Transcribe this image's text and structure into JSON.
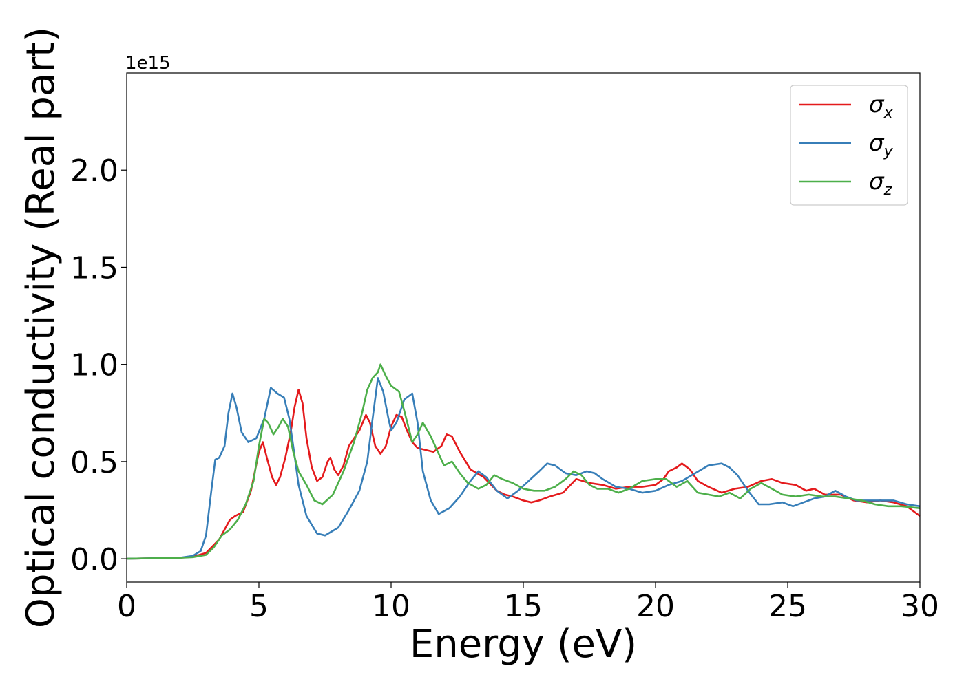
{
  "chart_data": {
    "type": "line",
    "title": "",
    "xlabel": "Energy (eV)",
    "ylabel": "Optical conductivity (Real part)",
    "y_offset_text": "1e15",
    "xlim": [
      0,
      30
    ],
    "ylim": [
      -0.12,
      2.5
    ],
    "x_ticks": [
      0,
      5,
      10,
      15,
      20,
      25,
      30
    ],
    "x_tick_labels": [
      "0",
      "5",
      "10",
      "15",
      "20",
      "25",
      "30"
    ],
    "y_ticks": [
      0.0,
      0.5,
      1.0,
      1.5,
      2.0
    ],
    "y_tick_labels": [
      "0.0",
      "0.5",
      "1.0",
      "1.5",
      "2.0"
    ],
    "grid": false,
    "legend_position": "top-right",
    "series": [
      {
        "name": "σ",
        "subscript": "x",
        "color": "#e41a1c",
        "points": [
          [
            0,
            0
          ],
          [
            2,
            0.005
          ],
          [
            2.5,
            0.01
          ],
          [
            3,
            0.03
          ],
          [
            3.5,
            0.1
          ],
          [
            3.9,
            0.2
          ],
          [
            4.1,
            0.22
          ],
          [
            4.4,
            0.24
          ],
          [
            4.7,
            0.35
          ],
          [
            5.0,
            0.55
          ],
          [
            5.15,
            0.6
          ],
          [
            5.3,
            0.52
          ],
          [
            5.5,
            0.42
          ],
          [
            5.65,
            0.38
          ],
          [
            5.8,
            0.42
          ],
          [
            6.0,
            0.52
          ],
          [
            6.2,
            0.65
          ],
          [
            6.35,
            0.78
          ],
          [
            6.5,
            0.87
          ],
          [
            6.65,
            0.8
          ],
          [
            6.8,
            0.62
          ],
          [
            7.0,
            0.47
          ],
          [
            7.2,
            0.4
          ],
          [
            7.4,
            0.42
          ],
          [
            7.6,
            0.5
          ],
          [
            7.7,
            0.52
          ],
          [
            7.85,
            0.46
          ],
          [
            8.0,
            0.43
          ],
          [
            8.2,
            0.48
          ],
          [
            8.4,
            0.58
          ],
          [
            8.6,
            0.62
          ],
          [
            8.8,
            0.66
          ],
          [
            9.05,
            0.74
          ],
          [
            9.2,
            0.7
          ],
          [
            9.4,
            0.58
          ],
          [
            9.6,
            0.54
          ],
          [
            9.8,
            0.58
          ],
          [
            10.0,
            0.68
          ],
          [
            10.2,
            0.74
          ],
          [
            10.4,
            0.73
          ],
          [
            10.6,
            0.66
          ],
          [
            10.8,
            0.6
          ],
          [
            11.0,
            0.57
          ],
          [
            11.3,
            0.56
          ],
          [
            11.6,
            0.55
          ],
          [
            11.9,
            0.58
          ],
          [
            12.1,
            0.64
          ],
          [
            12.3,
            0.63
          ],
          [
            12.6,
            0.55
          ],
          [
            13.0,
            0.46
          ],
          [
            13.5,
            0.42
          ],
          [
            14.0,
            0.35
          ],
          [
            14.3,
            0.33
          ],
          [
            14.6,
            0.32
          ],
          [
            15.0,
            0.3
          ],
          [
            15.3,
            0.29
          ],
          [
            15.6,
            0.3
          ],
          [
            16.0,
            0.32
          ],
          [
            16.5,
            0.34
          ],
          [
            17.0,
            0.41
          ],
          [
            17.5,
            0.39
          ],
          [
            18.0,
            0.38
          ],
          [
            18.5,
            0.36
          ],
          [
            19.0,
            0.37
          ],
          [
            19.5,
            0.37
          ],
          [
            20.0,
            0.38
          ],
          [
            20.3,
            0.41
          ],
          [
            20.5,
            0.45
          ],
          [
            20.8,
            0.47
          ],
          [
            21.0,
            0.49
          ],
          [
            21.3,
            0.46
          ],
          [
            21.6,
            0.4
          ],
          [
            22.0,
            0.37
          ],
          [
            22.5,
            0.34
          ],
          [
            23.0,
            0.36
          ],
          [
            23.5,
            0.37
          ],
          [
            24.0,
            0.4
          ],
          [
            24.4,
            0.41
          ],
          [
            24.8,
            0.39
          ],
          [
            25.3,
            0.38
          ],
          [
            25.7,
            0.35
          ],
          [
            26.0,
            0.36
          ],
          [
            26.4,
            0.33
          ],
          [
            27.0,
            0.33
          ],
          [
            27.5,
            0.3
          ],
          [
            28.0,
            0.29
          ],
          [
            28.5,
            0.3
          ],
          [
            29.0,
            0.29
          ],
          [
            29.5,
            0.27
          ],
          [
            30,
            0.22
          ]
        ]
      },
      {
        "name": "σ",
        "subscript": "y",
        "color": "#377eb8",
        "points": [
          [
            0,
            0
          ],
          [
            2,
            0.005
          ],
          [
            2.5,
            0.015
          ],
          [
            2.8,
            0.04
          ],
          [
            3.0,
            0.12
          ],
          [
            3.2,
            0.35
          ],
          [
            3.35,
            0.51
          ],
          [
            3.5,
            0.52
          ],
          [
            3.7,
            0.58
          ],
          [
            3.85,
            0.75
          ],
          [
            4.0,
            0.85
          ],
          [
            4.15,
            0.78
          ],
          [
            4.35,
            0.65
          ],
          [
            4.6,
            0.6
          ],
          [
            4.9,
            0.62
          ],
          [
            5.2,
            0.72
          ],
          [
            5.45,
            0.88
          ],
          [
            5.7,
            0.85
          ],
          [
            5.95,
            0.83
          ],
          [
            6.15,
            0.72
          ],
          [
            6.3,
            0.58
          ],
          [
            6.5,
            0.38
          ],
          [
            6.8,
            0.22
          ],
          [
            7.2,
            0.13
          ],
          [
            7.5,
            0.12
          ],
          [
            8.0,
            0.16
          ],
          [
            8.4,
            0.25
          ],
          [
            8.8,
            0.35
          ],
          [
            9.1,
            0.5
          ],
          [
            9.3,
            0.72
          ],
          [
            9.5,
            0.93
          ],
          [
            9.7,
            0.86
          ],
          [
            9.9,
            0.72
          ],
          [
            10.0,
            0.66
          ],
          [
            10.2,
            0.7
          ],
          [
            10.5,
            0.82
          ],
          [
            10.8,
            0.85
          ],
          [
            11.0,
            0.7
          ],
          [
            11.2,
            0.45
          ],
          [
            11.5,
            0.3
          ],
          [
            11.8,
            0.23
          ],
          [
            12.2,
            0.26
          ],
          [
            12.6,
            0.32
          ],
          [
            13.0,
            0.4
          ],
          [
            13.3,
            0.45
          ],
          [
            13.6,
            0.42
          ],
          [
            14.0,
            0.35
          ],
          [
            14.4,
            0.31
          ],
          [
            14.8,
            0.35
          ],
          [
            15.2,
            0.4
          ],
          [
            15.6,
            0.45
          ],
          [
            15.9,
            0.49
          ],
          [
            16.2,
            0.48
          ],
          [
            16.6,
            0.44
          ],
          [
            17.0,
            0.43
          ],
          [
            17.4,
            0.45
          ],
          [
            17.7,
            0.44
          ],
          [
            18.0,
            0.41
          ],
          [
            18.5,
            0.37
          ],
          [
            19.0,
            0.36
          ],
          [
            19.5,
            0.34
          ],
          [
            20.0,
            0.35
          ],
          [
            20.5,
            0.38
          ],
          [
            21.0,
            0.4
          ],
          [
            21.5,
            0.44
          ],
          [
            22.0,
            0.48
          ],
          [
            22.5,
            0.49
          ],
          [
            22.8,
            0.47
          ],
          [
            23.1,
            0.43
          ],
          [
            23.5,
            0.35
          ],
          [
            23.9,
            0.28
          ],
          [
            24.3,
            0.28
          ],
          [
            24.8,
            0.29
          ],
          [
            25.2,
            0.27
          ],
          [
            25.6,
            0.29
          ],
          [
            26.0,
            0.31
          ],
          [
            26.4,
            0.32
          ],
          [
            26.8,
            0.35
          ],
          [
            27.2,
            0.32
          ],
          [
            27.6,
            0.3
          ],
          [
            28.0,
            0.3
          ],
          [
            28.5,
            0.3
          ],
          [
            29.0,
            0.3
          ],
          [
            29.5,
            0.28
          ],
          [
            30,
            0.27
          ]
        ]
      },
      {
        "name": "σ",
        "subscript": "z",
        "color": "#4daf4a",
        "points": [
          [
            0,
            0
          ],
          [
            2,
            0.005
          ],
          [
            2.5,
            0.008
          ],
          [
            3.0,
            0.02
          ],
          [
            3.3,
            0.06
          ],
          [
            3.6,
            0.12
          ],
          [
            3.9,
            0.15
          ],
          [
            4.2,
            0.2
          ],
          [
            4.5,
            0.28
          ],
          [
            4.8,
            0.4
          ],
          [
            5.0,
            0.58
          ],
          [
            5.2,
            0.72
          ],
          [
            5.35,
            0.7
          ],
          [
            5.55,
            0.64
          ],
          [
            5.75,
            0.68
          ],
          [
            5.9,
            0.72
          ],
          [
            6.1,
            0.68
          ],
          [
            6.3,
            0.55
          ],
          [
            6.5,
            0.45
          ],
          [
            6.8,
            0.38
          ],
          [
            7.1,
            0.3
          ],
          [
            7.4,
            0.28
          ],
          [
            7.8,
            0.33
          ],
          [
            8.2,
            0.45
          ],
          [
            8.6,
            0.6
          ],
          [
            8.9,
            0.75
          ],
          [
            9.1,
            0.87
          ],
          [
            9.3,
            0.93
          ],
          [
            9.5,
            0.96
          ],
          [
            9.6,
            1.0
          ],
          [
            9.8,
            0.94
          ],
          [
            10.0,
            0.89
          ],
          [
            10.3,
            0.86
          ],
          [
            10.5,
            0.76
          ],
          [
            10.8,
            0.6
          ],
          [
            11.0,
            0.64
          ],
          [
            11.2,
            0.7
          ],
          [
            11.5,
            0.63
          ],
          [
            11.8,
            0.54
          ],
          [
            12.0,
            0.48
          ],
          [
            12.3,
            0.5
          ],
          [
            12.6,
            0.44
          ],
          [
            12.9,
            0.39
          ],
          [
            13.3,
            0.36
          ],
          [
            13.6,
            0.38
          ],
          [
            13.9,
            0.43
          ],
          [
            14.2,
            0.41
          ],
          [
            14.6,
            0.39
          ],
          [
            15.0,
            0.36
          ],
          [
            15.4,
            0.35
          ],
          [
            15.8,
            0.35
          ],
          [
            16.2,
            0.37
          ],
          [
            16.6,
            0.41
          ],
          [
            16.9,
            0.45
          ],
          [
            17.2,
            0.43
          ],
          [
            17.5,
            0.38
          ],
          [
            17.8,
            0.36
          ],
          [
            18.2,
            0.36
          ],
          [
            18.6,
            0.34
          ],
          [
            19.0,
            0.36
          ],
          [
            19.5,
            0.4
          ],
          [
            20.0,
            0.41
          ],
          [
            20.4,
            0.41
          ],
          [
            20.8,
            0.37
          ],
          [
            21.2,
            0.4
          ],
          [
            21.6,
            0.34
          ],
          [
            22.0,
            0.33
          ],
          [
            22.4,
            0.32
          ],
          [
            22.8,
            0.34
          ],
          [
            23.2,
            0.31
          ],
          [
            23.6,
            0.36
          ],
          [
            24.0,
            0.39
          ],
          [
            24.4,
            0.36
          ],
          [
            24.8,
            0.33
          ],
          [
            25.3,
            0.32
          ],
          [
            25.8,
            0.33
          ],
          [
            26.3,
            0.32
          ],
          [
            26.8,
            0.32
          ],
          [
            27.3,
            0.31
          ],
          [
            27.8,
            0.3
          ],
          [
            28.3,
            0.28
          ],
          [
            28.8,
            0.27
          ],
          [
            29.3,
            0.27
          ],
          [
            30,
            0.26
          ]
        ]
      }
    ]
  }
}
